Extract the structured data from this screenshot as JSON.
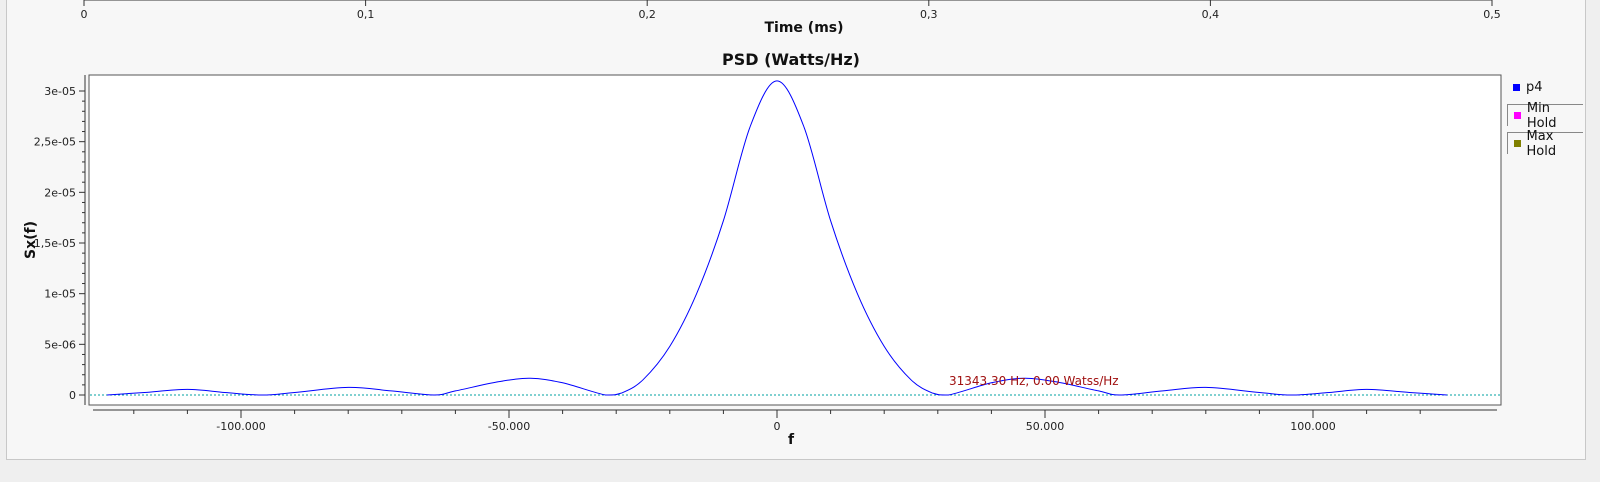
{
  "top_axis": {
    "xlabel": "Time (ms)",
    "ticks": [
      "0",
      "0,1",
      "0,2",
      "0,3",
      "0,4",
      "0,5"
    ]
  },
  "chart_data": {
    "type": "line",
    "title": "PSD (Watts/Hz)",
    "xlabel": "f",
    "ylabel": "Sx(f)",
    "xlim": [
      -125000,
      125000
    ],
    "ylim": [
      0,
      3.15e-05
    ],
    "x_ticks": [
      {
        "value": -100000,
        "label": "-100.000"
      },
      {
        "value": -50000,
        "label": "-50.000"
      },
      {
        "value": 0,
        "label": "0"
      },
      {
        "value": 50000,
        "label": "50.000"
      },
      {
        "value": 100000,
        "label": "100.000"
      }
    ],
    "y_ticks": [
      {
        "value": 0,
        "label": "0"
      },
      {
        "value": 5e-06,
        "label": "5e-06"
      },
      {
        "value": 1e-05,
        "label": "1e-05"
      },
      {
        "value": 1.5e-05,
        "label": "1,5e-05"
      },
      {
        "value": 2e-05,
        "label": "2e-05"
      },
      {
        "value": 2.5e-05,
        "label": "2,5e-05"
      },
      {
        "value": 3e-05,
        "label": "3e-05"
      }
    ],
    "series": [
      {
        "name": "p4",
        "color": "#0000ff",
        "x": [
          -125000,
          -118000,
          -110000,
          -103000,
          -96000,
          -90000,
          -80000,
          -72000,
          -64000,
          -60000,
          -52000,
          -46000,
          -40000,
          -32000,
          -29000,
          -25000,
          -20000,
          -15000,
          -10000,
          -5000,
          0,
          5000,
          10000,
          15000,
          20000,
          25000,
          29000,
          32000,
          40000,
          46000,
          52000,
          60000,
          64000,
          72000,
          80000,
          90000,
          96000,
          103000,
          110000,
          118000,
          125000
        ],
        "values": [
          0,
          2.5e-07,
          5.5e-07,
          2.5e-07,
          0,
          2.5e-07,
          7.5e-07,
          4e-07,
          0,
          4e-07,
          1.3e-06,
          1.65e-06,
          1.2e-06,
          0,
          2e-07,
          1.5e-06,
          4.8e-06,
          1e-05,
          1.72e-05,
          2.65e-05,
          3.1e-05,
          2.65e-05,
          1.72e-05,
          1e-05,
          4.8e-06,
          1.5e-06,
          2e-07,
          0,
          1.2e-06,
          1.65e-06,
          1.3e-06,
          4e-07,
          0,
          4e-07,
          7.5e-07,
          2.5e-07,
          0,
          2.5e-07,
          5.5e-07,
          2.5e-07,
          0
        ]
      },
      {
        "name": "Min Hold",
        "color": "#ff00ff"
      },
      {
        "name": "Max Hold",
        "color": "#808000"
      }
    ],
    "baseline_color": "#00a0a0",
    "marker": {
      "x": 31343.3,
      "y": 0,
      "text": "31343.30 Hz, 0.00 Watss/Hz",
      "color": "#a01010"
    }
  }
}
